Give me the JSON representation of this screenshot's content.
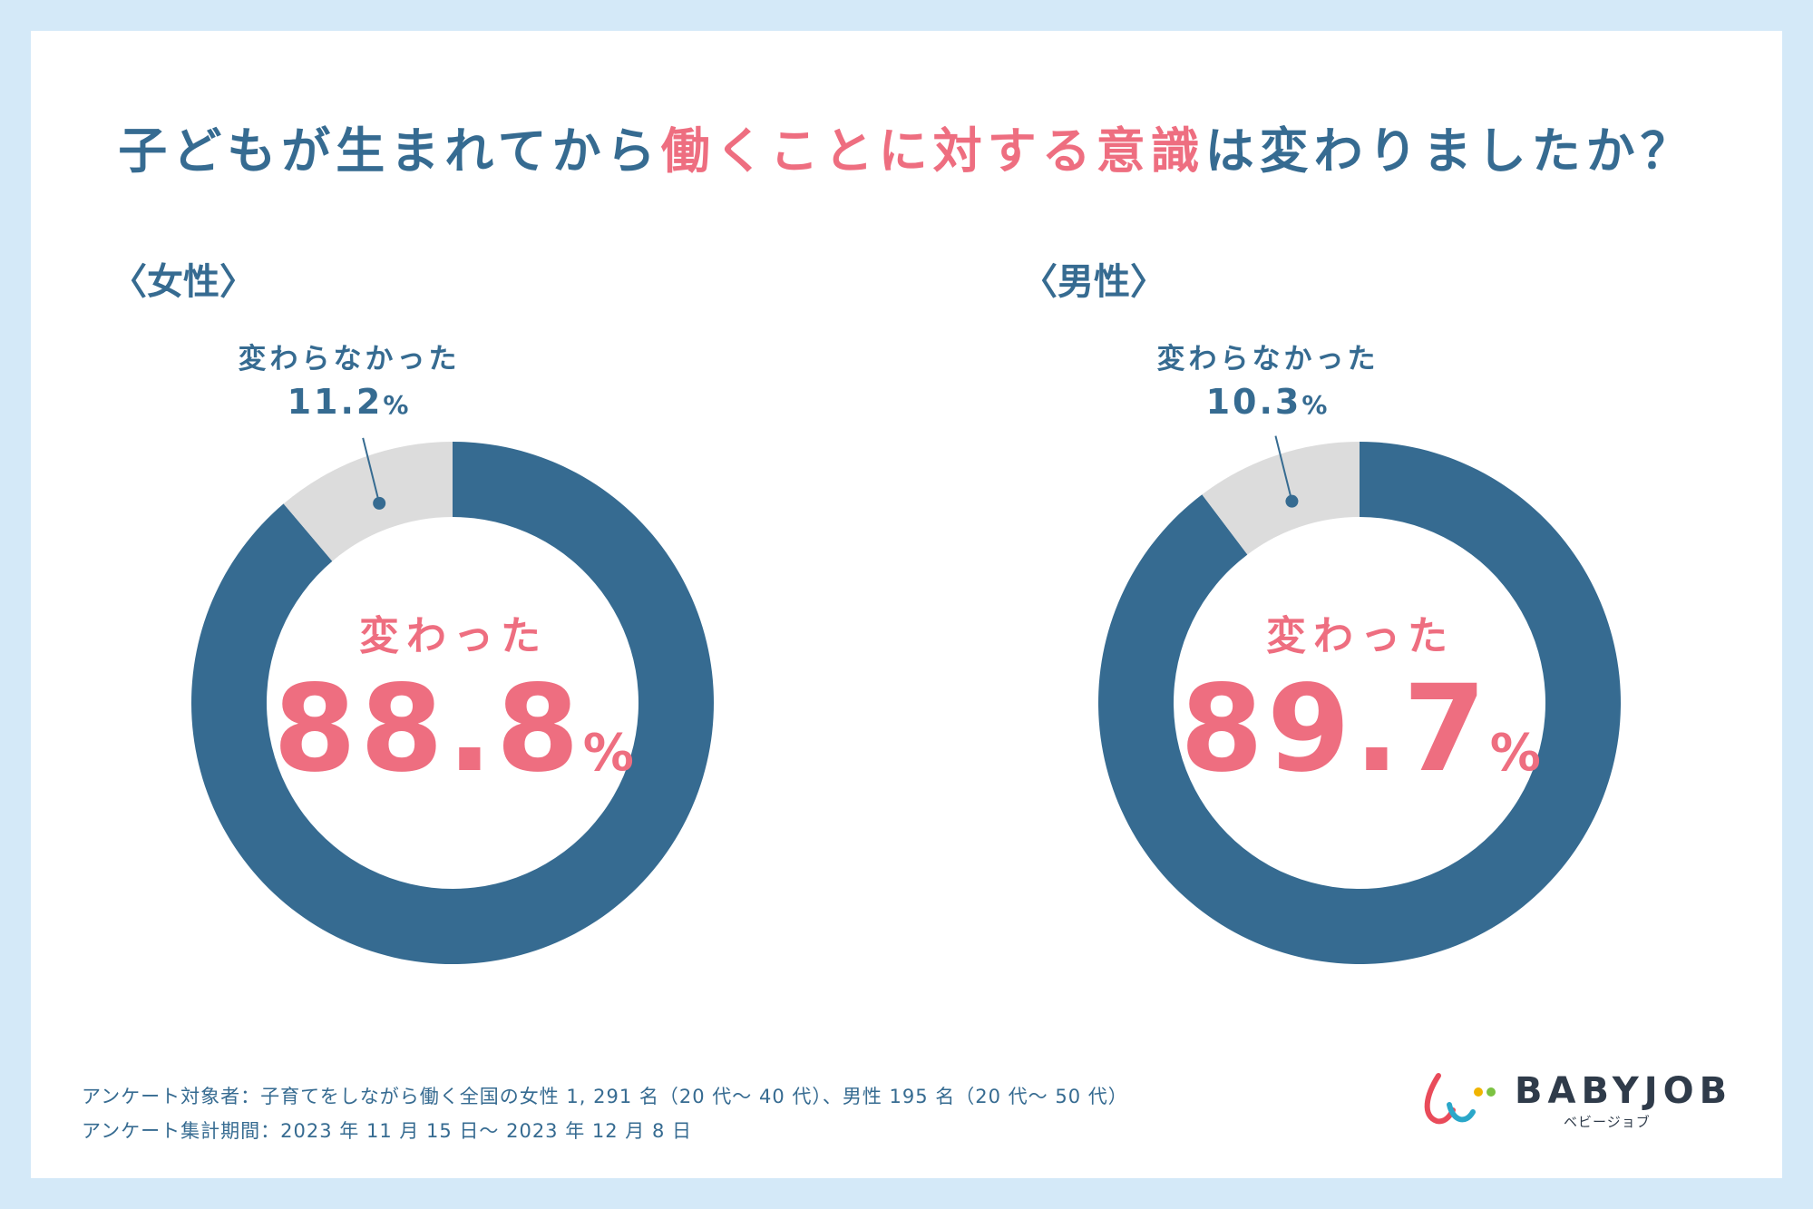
{
  "title": {
    "part1": "子どもが生まれてから",
    "highlight": "働くことに対する意識",
    "part2": "は変わりましたか？"
  },
  "colors": {
    "changed": "#366b91",
    "unchanged": "#dcdcdc",
    "accent": "#ee6e80",
    "text": "#366b91"
  },
  "chart_data": [
    {
      "type": "pie",
      "title": "〈女性〉",
      "categories": [
        "変わった",
        "変わらなかった"
      ],
      "values": [
        88.8,
        11.2
      ],
      "changed_label": "変わった",
      "changed_value": "88.8",
      "unchanged_label": "変わらなかった",
      "unchanged_value": "11.2",
      "unit": "%"
    },
    {
      "type": "pie",
      "title": "〈男性〉",
      "categories": [
        "変わった",
        "変わらなかった"
      ],
      "values": [
        89.7,
        10.3
      ],
      "changed_label": "変わった",
      "changed_value": "89.7",
      "unchanged_label": "変わらなかった",
      "unchanged_value": "10.3",
      "unit": "%"
    }
  ],
  "footer": {
    "line1": "アンケート対象者：子育てをしながら働く全国の女性 1, 291 名（20 代～ 40 代）、男性 195 名（20 代～ 50 代）",
    "line2": "アンケート集計期間：2023 年 11 月 15 日～ 2023 年 12 月 8 日"
  },
  "logo": {
    "name": "BABYJOB",
    "sub": "ベビージョブ"
  }
}
